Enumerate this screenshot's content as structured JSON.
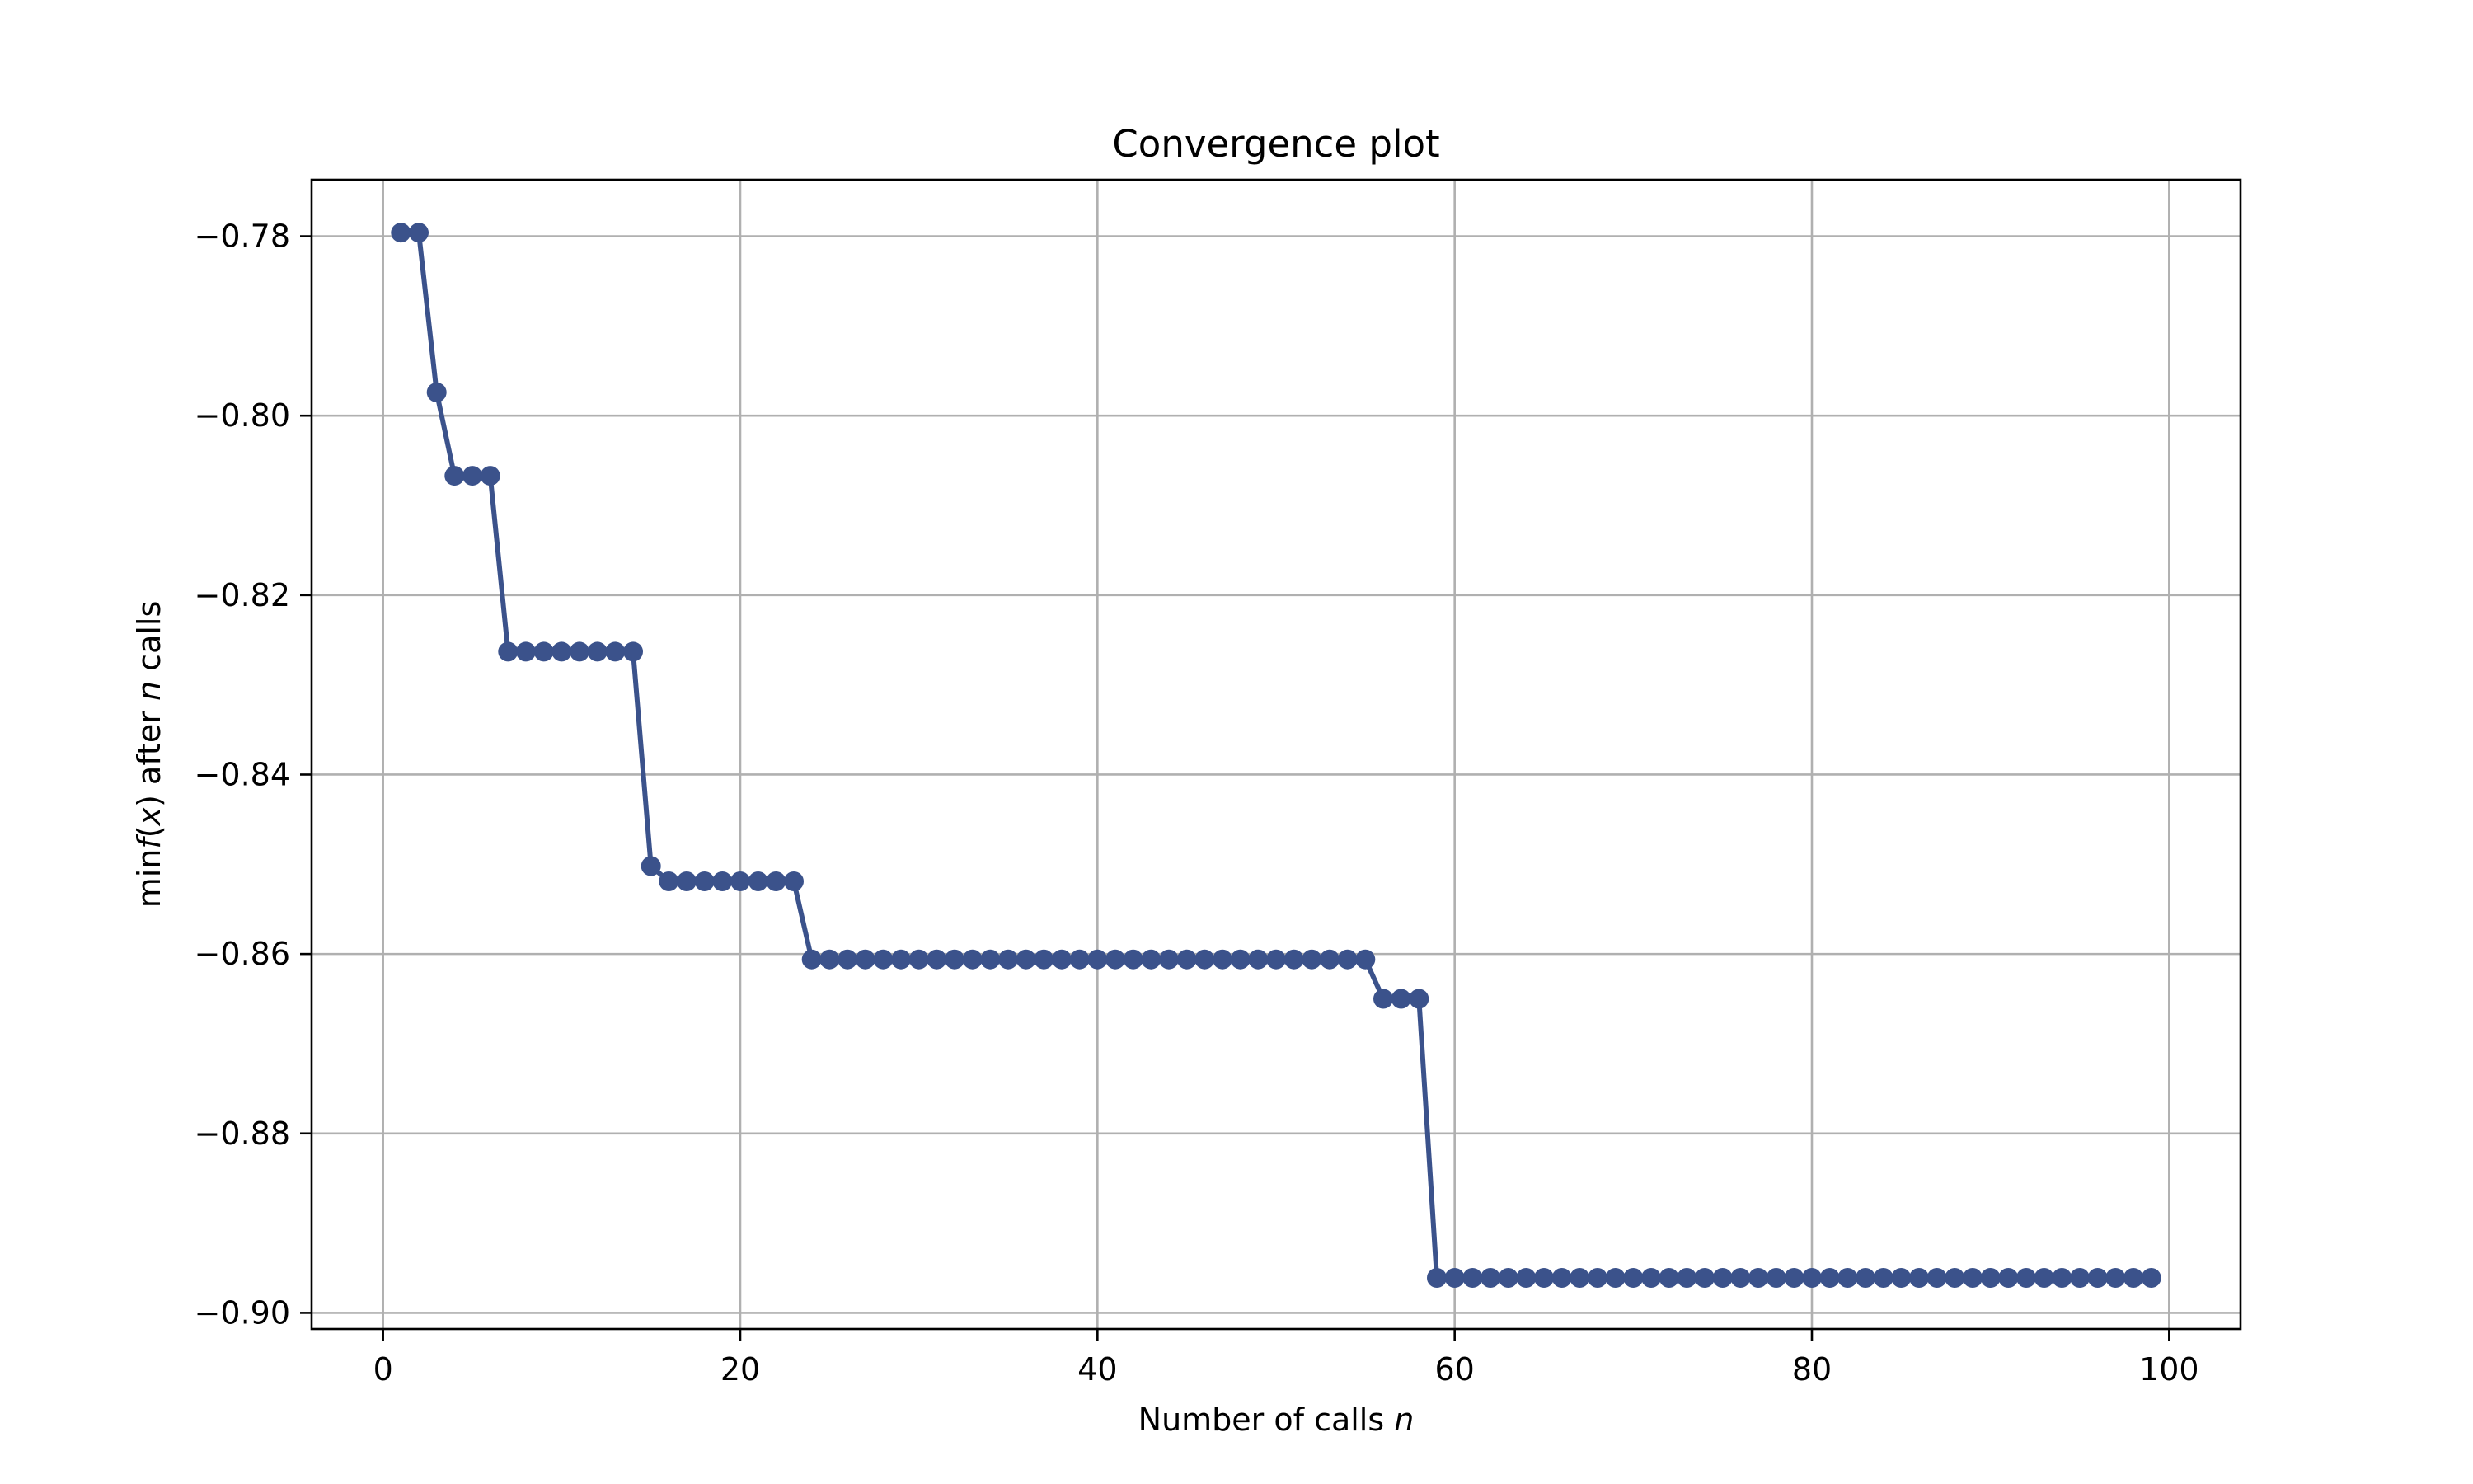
{
  "chart_data": {
    "type": "line",
    "title": "Convergence plot",
    "xlabel": {
      "prefix": "Number of calls ",
      "italic": "n"
    },
    "ylabel": {
      "prefix": "min",
      "italic_f": "f",
      "open": "(",
      "italic_x": "x",
      "close": ") after ",
      "italic_n": "n",
      "suffix": " calls"
    },
    "xlim": [
      -4,
      104
    ],
    "ylim": [
      -0.9018,
      -0.7737
    ],
    "xticks": [
      0,
      20,
      40,
      60,
      80,
      100
    ],
    "xtick_labels": [
      "0",
      "20",
      "40",
      "60",
      "80",
      "100"
    ],
    "yticks": [
      -0.78,
      -0.8,
      -0.82,
      -0.84,
      -0.86,
      -0.88,
      -0.9
    ],
    "ytick_labels": [
      "−0.78",
      "−0.80",
      "−0.82",
      "−0.84",
      "−0.86",
      "−0.88",
      "−0.90"
    ],
    "grid": true,
    "series": [
      {
        "color": "#3b528b",
        "marker": "circle",
        "x": [
          1,
          2,
          3,
          4,
          5,
          6,
          7,
          8,
          9,
          10,
          11,
          12,
          13,
          14,
          15,
          16,
          17,
          18,
          19,
          20,
          21,
          22,
          23,
          24,
          25,
          26,
          27,
          28,
          29,
          30,
          31,
          32,
          33,
          34,
          35,
          36,
          37,
          38,
          39,
          40,
          41,
          42,
          43,
          44,
          45,
          46,
          47,
          48,
          49,
          50,
          51,
          52,
          53,
          54,
          55,
          56,
          57,
          58,
          59,
          60,
          61,
          62,
          63,
          64,
          65,
          66,
          67,
          68,
          69,
          70,
          71,
          72,
          73,
          74,
          75,
          76,
          77,
          78,
          79,
          80,
          81,
          82,
          83,
          84,
          85,
          86,
          87,
          88,
          89,
          90,
          91,
          92,
          93,
          94,
          95,
          96,
          97,
          98,
          99
        ],
        "y": [
          -0.7796,
          -0.7796,
          -0.7974,
          -0.8067,
          -0.8067,
          -0.8067,
          -0.8263,
          -0.8263,
          -0.8263,
          -0.8263,
          -0.8263,
          -0.8263,
          -0.8263,
          -0.8263,
          -0.8502,
          -0.8519,
          -0.8519,
          -0.8519,
          -0.8519,
          -0.8519,
          -0.8519,
          -0.8519,
          -0.8519,
          -0.8606,
          -0.8606,
          -0.8606,
          -0.8606,
          -0.8606,
          -0.8606,
          -0.8606,
          -0.8606,
          -0.8606,
          -0.8606,
          -0.8606,
          -0.8606,
          -0.8606,
          -0.8606,
          -0.8606,
          -0.8606,
          -0.8606,
          -0.8606,
          -0.8606,
          -0.8606,
          -0.8606,
          -0.8606,
          -0.8606,
          -0.8606,
          -0.8606,
          -0.8606,
          -0.8606,
          -0.8606,
          -0.8606,
          -0.8606,
          -0.8606,
          -0.8606,
          -0.865,
          -0.865,
          -0.865,
          -0.8961,
          -0.8961,
          -0.8961,
          -0.8961,
          -0.8961,
          -0.8961,
          -0.8961,
          -0.8961,
          -0.8961,
          -0.8961,
          -0.8961,
          -0.8961,
          -0.8961,
          -0.8961,
          -0.8961,
          -0.8961,
          -0.8961,
          -0.8961,
          -0.8961,
          -0.8961,
          -0.8961,
          -0.8961,
          -0.8961,
          -0.8961,
          -0.8961,
          -0.8961,
          -0.8961,
          -0.8961,
          -0.8961,
          -0.8961,
          -0.8961,
          -0.8961,
          -0.8961,
          -0.8961,
          -0.8961,
          -0.8961,
          -0.8961,
          -0.8961,
          -0.8961,
          -0.8961,
          -0.8961
        ]
      }
    ]
  }
}
